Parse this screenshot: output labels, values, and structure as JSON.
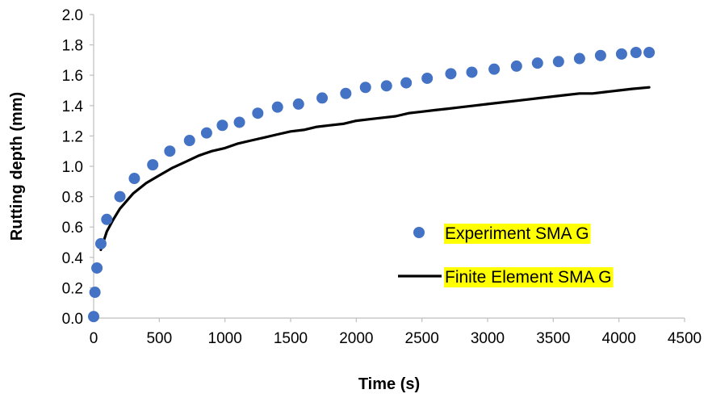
{
  "chart_data": {
    "type": "scatter",
    "xlabel": "Time (s)",
    "ylabel": "Rutting depth (mm)",
    "xlim": [
      0,
      4500
    ],
    "ylim": [
      0,
      2.0
    ],
    "x_ticks": [
      0,
      500,
      1000,
      1500,
      2000,
      2500,
      3000,
      3500,
      4000,
      4500
    ],
    "y_ticks": [
      "0.0",
      "0.2",
      "0.4",
      "0.6",
      "0.8",
      "1.0",
      "1.2",
      "1.4",
      "1.6",
      "1.8",
      "2.0"
    ],
    "grid": false,
    "legend_position": "right",
    "legend_highlight_color": "#ffff00",
    "series": [
      {
        "name": "Experiment SMA G",
        "style": "markers",
        "color": "#4472c4",
        "points": [
          [
            0,
            0.01
          ],
          [
            10,
            0.17
          ],
          [
            25,
            0.33
          ],
          [
            55,
            0.49
          ],
          [
            100,
            0.65
          ],
          [
            200,
            0.8
          ],
          [
            310,
            0.92
          ],
          [
            450,
            1.01
          ],
          [
            580,
            1.1
          ],
          [
            730,
            1.17
          ],
          [
            860,
            1.22
          ],
          [
            980,
            1.27
          ],
          [
            1110,
            1.29
          ],
          [
            1250,
            1.35
          ],
          [
            1400,
            1.39
          ],
          [
            1560,
            1.41
          ],
          [
            1740,
            1.45
          ],
          [
            1920,
            1.48
          ],
          [
            2070,
            1.52
          ],
          [
            2230,
            1.53
          ],
          [
            2380,
            1.55
          ],
          [
            2540,
            1.58
          ],
          [
            2720,
            1.61
          ],
          [
            2880,
            1.62
          ],
          [
            3050,
            1.64
          ],
          [
            3220,
            1.66
          ],
          [
            3380,
            1.68
          ],
          [
            3540,
            1.69
          ],
          [
            3700,
            1.71
          ],
          [
            3860,
            1.73
          ],
          [
            4020,
            1.74
          ],
          [
            4130,
            1.75
          ],
          [
            4230,
            1.75
          ]
        ]
      },
      {
        "name": "Finite Element SMA G",
        "style": "line",
        "color": "#000000",
        "points": [
          [
            55,
            0.45
          ],
          [
            100,
            0.57
          ],
          [
            150,
            0.65
          ],
          [
            200,
            0.72
          ],
          [
            300,
            0.82
          ],
          [
            400,
            0.89
          ],
          [
            500,
            0.94
          ],
          [
            600,
            0.99
          ],
          [
            700,
            1.03
          ],
          [
            800,
            1.07
          ],
          [
            900,
            1.1
          ],
          [
            1000,
            1.12
          ],
          [
            1100,
            1.15
          ],
          [
            1200,
            1.17
          ],
          [
            1300,
            1.19
          ],
          [
            1400,
            1.21
          ],
          [
            1500,
            1.23
          ],
          [
            1600,
            1.24
          ],
          [
            1700,
            1.26
          ],
          [
            1800,
            1.27
          ],
          [
            1900,
            1.28
          ],
          [
            2000,
            1.3
          ],
          [
            2100,
            1.31
          ],
          [
            2200,
            1.32
          ],
          [
            2300,
            1.33
          ],
          [
            2400,
            1.35
          ],
          [
            2500,
            1.36
          ],
          [
            2600,
            1.37
          ],
          [
            2700,
            1.38
          ],
          [
            2800,
            1.39
          ],
          [
            2900,
            1.4
          ],
          [
            3000,
            1.41
          ],
          [
            3100,
            1.42
          ],
          [
            3200,
            1.43
          ],
          [
            3300,
            1.44
          ],
          [
            3400,
            1.45
          ],
          [
            3500,
            1.46
          ],
          [
            3600,
            1.47
          ],
          [
            3700,
            1.48
          ],
          [
            3800,
            1.48
          ],
          [
            3900,
            1.49
          ],
          [
            4000,
            1.5
          ],
          [
            4100,
            1.51
          ],
          [
            4230,
            1.52
          ]
        ]
      }
    ]
  }
}
